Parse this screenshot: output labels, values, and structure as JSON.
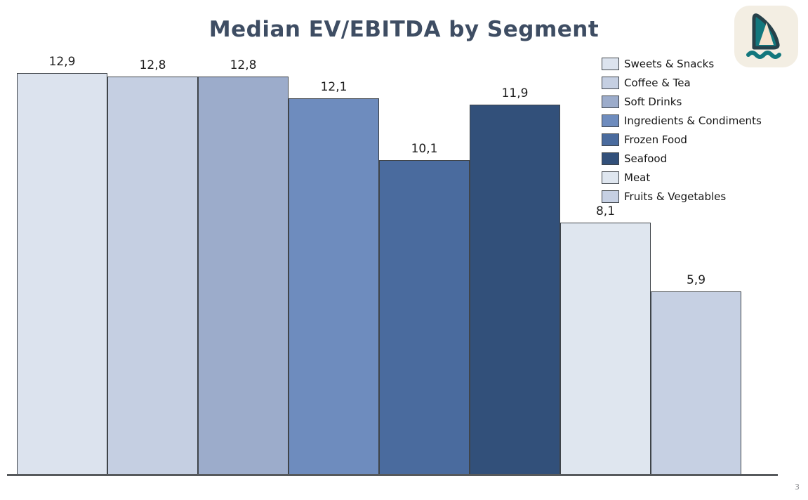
{
  "page": {
    "background": "#ffffff",
    "page_number": "3"
  },
  "title": "Median EV/EBITDA by Segment",
  "logo": {
    "icon": "shark-fin-logo",
    "bg": "#f3eee3",
    "teal": "#12777d",
    "outline": "#27414a",
    "sail_fill": "#f6e3ce"
  },
  "chart_data": {
    "type": "bar",
    "title": "Median EV/EBITDA by Segment",
    "categories": [
      "Sweets & Snacks",
      "Coffee & Tea",
      "Soft Drinks",
      "Ingredients & Condiments",
      "Frozen Food",
      "Seafood",
      "Meat",
      "Fruits & Vegetables"
    ],
    "values": [
      12.9,
      12.8,
      12.8,
      12.1,
      10.1,
      11.9,
      8.1,
      5.9
    ],
    "value_labels": [
      "12,9",
      "12,8",
      "12,8",
      "12,1",
      "10,1",
      "11,9",
      "8,1",
      "5,9"
    ],
    "colors": [
      "#dce3ee",
      "#c5cfe2",
      "#9caccb",
      "#6e8cbe",
      "#4a6b9e",
      "#32507a",
      "#dfe6ef",
      "#c6d0e3"
    ],
    "bar_border_color": "#3f4449",
    "xlabel": "",
    "ylabel": "",
    "ylim": [
      0,
      13.45
    ],
    "grid": false,
    "value_label_decimal_separator": ",",
    "legend_position": "upper right",
    "legend": [
      "Sweets & Snacks",
      "Coffee & Tea",
      "Soft Drinks",
      "Ingredients & Condiments",
      "Frozen Food",
      "Seafood",
      "Meat",
      "Fruits & Vegetables"
    ]
  }
}
